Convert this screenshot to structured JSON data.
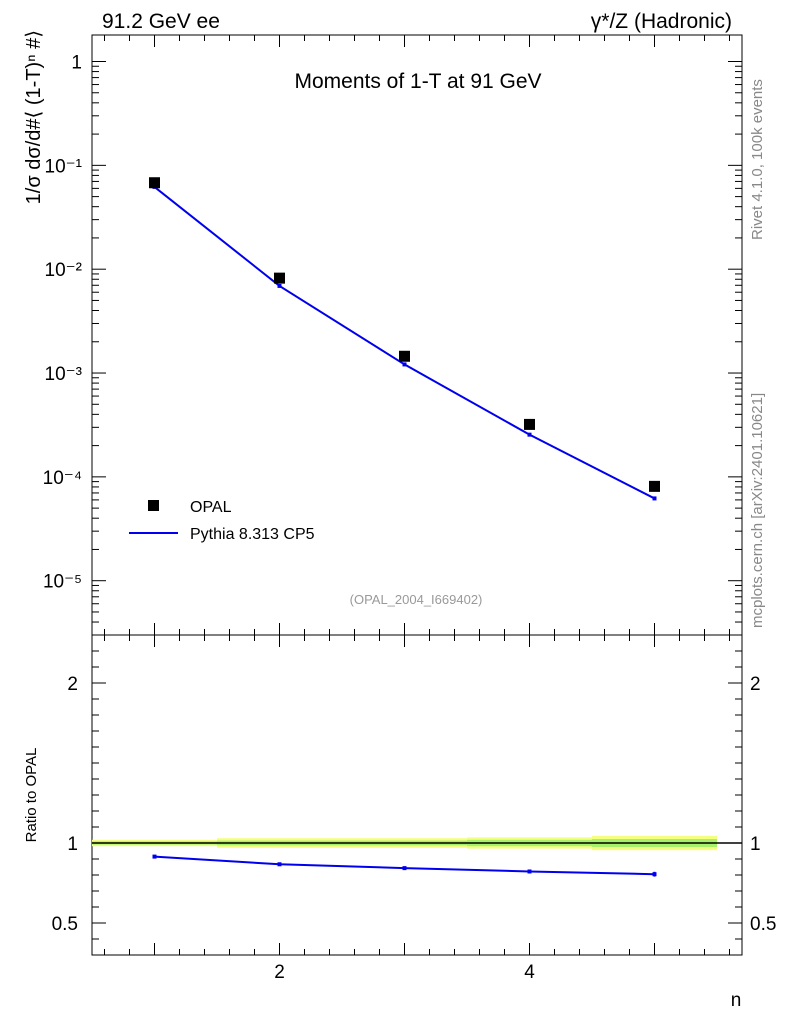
{
  "header": {
    "left": "91.2 GeV ee",
    "right": "γ*/Z (Hadronic)"
  },
  "side": {
    "rivet": "Rivet 4.1.0,  100k events",
    "mcplots": "mcplots.cern.ch [arXiv:2401.10621]"
  },
  "colors": {
    "mc": "#0000ee",
    "data": "#000000",
    "band_outer": "#f4ff80",
    "band_inner": "#a6f06a"
  },
  "chart_data": [
    {
      "type": "scatter",
      "yscale": "log",
      "title": "Moments of 1-T at 91 GeV",
      "ylabel": "1/σ  dσ/d#⟨ (1-T)ⁿ #⟩",
      "analysis": "(OPAL_2004_I669402)",
      "xlim": [
        0.5,
        5.7
      ],
      "ylim": [
        3e-06,
        1.8
      ],
      "ytick_labels": [
        {
          "value": 1,
          "label": "1"
        },
        {
          "value": 0.1,
          "label": "10⁻¹"
        },
        {
          "value": 0.01,
          "label": "10⁻²"
        },
        {
          "value": 0.001,
          "label": "10⁻³"
        },
        {
          "value": 0.0001,
          "label": "10⁻⁴"
        },
        {
          "value": 1e-05,
          "label": "10⁻⁵"
        }
      ],
      "legend_position": "bottom-left",
      "series": [
        {
          "name": "OPAL",
          "kind": "markers",
          "x": [
            1,
            2,
            3,
            4,
            5
          ],
          "values": [
            0.068,
            0.0082,
            0.00145,
            0.00032,
            8.1e-05
          ]
        },
        {
          "name": "Pythia 8.313 CP5",
          "kind": "line",
          "x": [
            1,
            2,
            3,
            4,
            5
          ],
          "values": [
            0.062,
            0.0069,
            0.00121,
            0.000255,
            6.2e-05
          ]
        }
      ]
    },
    {
      "type": "line",
      "ylabel": "Ratio to OPAL",
      "xlabel": "n",
      "xlim": [
        0.5,
        5.7
      ],
      "ylim": [
        0.3,
        2.3
      ],
      "xtick_labels": [
        {
          "value": 2,
          "label": "2"
        },
        {
          "value": 4,
          "label": "4"
        }
      ],
      "ytick_labels": [
        {
          "value": 0.5,
          "label": "0.5"
        },
        {
          "value": 1,
          "label": "1"
        },
        {
          "value": 2,
          "label": "2"
        }
      ],
      "reference": 1,
      "band": {
        "x_edges": [
          0.5,
          1.5,
          2.5,
          3.5,
          4.5,
          5.5
        ],
        "outer": [
          0.02,
          0.03,
          0.03,
          0.035,
          0.045
        ],
        "inner": [
          0.01,
          0.015,
          0.015,
          0.02,
          0.025
        ]
      },
      "series": [
        {
          "name": "Pythia 8.313 CP5",
          "x": [
            1,
            2,
            3,
            4,
            5
          ],
          "values": [
            0.915,
            0.867,
            0.843,
            0.822,
            0.805
          ],
          "errors": [
            0.004,
            0.005,
            0.007,
            0.01,
            0.015
          ]
        }
      ]
    }
  ]
}
